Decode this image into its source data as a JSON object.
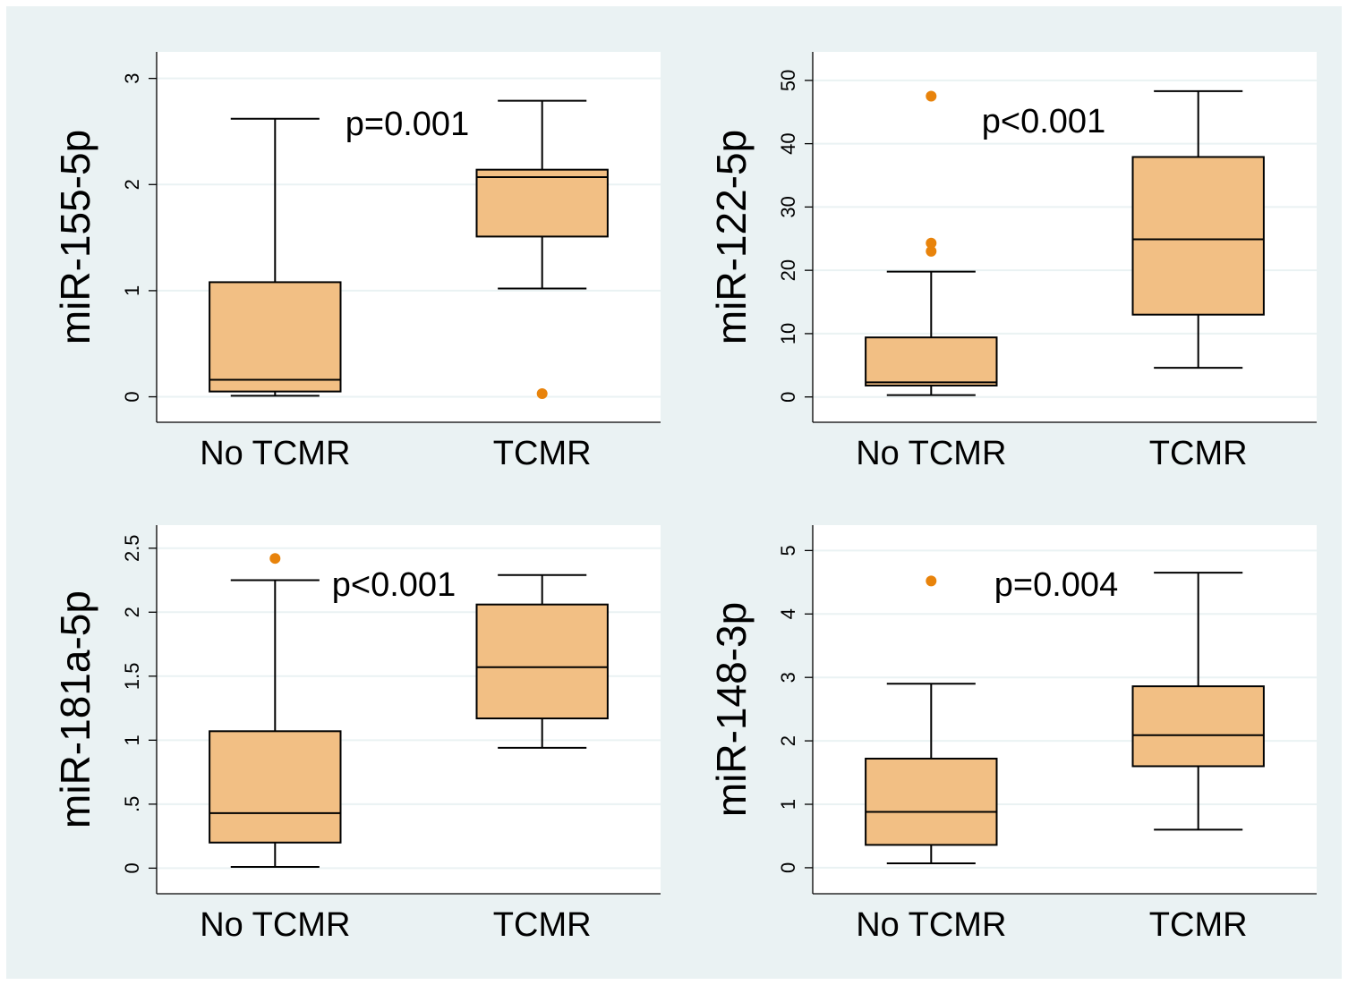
{
  "colors": {
    "outer_bg": "#eaf2f3",
    "plot_bg": "#ffffff",
    "box_fill": "#f2bf84",
    "outlier": "#e8830b",
    "grid": "#eaf2f3",
    "line": "#000000"
  },
  "chart_data": [
    {
      "type": "boxplot",
      "ylabel": "miR-155-5p",
      "annotation": "p=0.001",
      "categories": [
        "No TCMR",
        "TCMR"
      ],
      "yticks": [
        0,
        1,
        2,
        3
      ],
      "ytick_labels": [
        "0",
        "1",
        "2",
        "3"
      ],
      "ylim": [
        -0.24,
        3.25
      ],
      "grid": true,
      "boxes": [
        {
          "min": 0.01,
          "q1": 0.05,
          "median": 0.16,
          "q3": 1.08,
          "max": 2.62,
          "outliers": []
        },
        {
          "min": 1.02,
          "q1": 1.51,
          "median": 2.07,
          "q3": 2.14,
          "max": 2.79,
          "outliers": [
            0.03
          ]
        }
      ]
    },
    {
      "type": "boxplot",
      "ylabel": "miR-122-5p",
      "annotation": "p<0.001",
      "categories": [
        "No TCMR",
        "TCMR"
      ],
      "yticks": [
        0,
        10,
        20,
        30,
        40,
        50
      ],
      "ytick_labels": [
        "0",
        "10",
        "20",
        "30",
        "40",
        "50"
      ],
      "ylim": [
        -4,
        54.5
      ],
      "grid": true,
      "boxes": [
        {
          "min": 0.3,
          "q1": 1.8,
          "median": 2.3,
          "q3": 9.4,
          "max": 19.8,
          "outliers": [
            23.0,
            24.3,
            47.5
          ]
        },
        {
          "min": 4.6,
          "q1": 13.0,
          "median": 24.9,
          "q3": 37.9,
          "max": 48.3,
          "outliers": []
        }
      ]
    },
    {
      "type": "boxplot",
      "ylabel": "miR-181a-5p",
      "annotation": "p<0.001",
      "categories": [
        "No TCMR",
        "TCMR"
      ],
      "yticks": [
        0,
        0.5,
        1,
        1.5,
        2,
        2.5
      ],
      "ytick_labels": [
        "0",
        ".5",
        "1",
        "1.5",
        "2",
        "2.5"
      ],
      "ylim": [
        -0.2,
        2.68
      ],
      "grid": true,
      "boxes": [
        {
          "min": 0.01,
          "q1": 0.2,
          "median": 0.43,
          "q3": 1.07,
          "max": 2.25,
          "outliers": [
            2.42
          ]
        },
        {
          "min": 0.94,
          "q1": 1.17,
          "median": 1.57,
          "q3": 2.06,
          "max": 2.29,
          "outliers": []
        }
      ]
    },
    {
      "type": "boxplot",
      "ylabel": "miR-148-3p",
      "annotation": "p=0.004",
      "categories": [
        "No TCMR",
        "TCMR"
      ],
      "yticks": [
        0,
        1,
        2,
        3,
        4,
        5
      ],
      "ytick_labels": [
        "0",
        "1",
        "2",
        "3",
        "4",
        "5"
      ],
      "ylim": [
        -0.41,
        5.4
      ],
      "grid": true,
      "boxes": [
        {
          "min": 0.07,
          "q1": 0.36,
          "median": 0.88,
          "q3": 1.72,
          "max": 2.9,
          "outliers": [
            4.52
          ]
        },
        {
          "min": 0.6,
          "q1": 1.6,
          "median": 2.09,
          "q3": 2.86,
          "max": 4.65,
          "outliers": []
        }
      ]
    }
  ]
}
